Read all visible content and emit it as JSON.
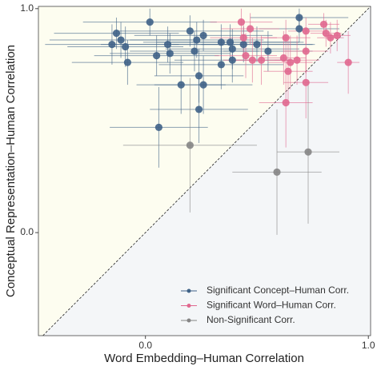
{
  "chart_data": {
    "type": "scatter",
    "xlabel": "Word Embedding–Human Correlation",
    "ylabel": "Conceptual Representation–Human Correlation",
    "xlim": [
      -0.48,
      1.01
    ],
    "ylim": [
      -0.46,
      1.01
    ],
    "xticks": [
      {
        "value": 0,
        "label": "0.0"
      },
      {
        "value": 1,
        "label": "1.0"
      }
    ],
    "yticks": [
      {
        "value": 0,
        "label": "0.0"
      },
      {
        "value": 1,
        "label": "1.0"
      }
    ],
    "legend": "bottom-right",
    "series": [
      {
        "name": "Significant Concept–Human Corr.",
        "color": "#3f6287",
        "x": [
          0.02,
          -0.13,
          -0.15,
          -0.11,
          -0.09,
          -0.08,
          0.05,
          0.1,
          0.11,
          0.2,
          0.23,
          0.26,
          0.22,
          0.24,
          0.26,
          0.16,
          0.24,
          0.06,
          0.34,
          0.38,
          0.39,
          0.34,
          0.39,
          0.44,
          0.5,
          0.55,
          0.69,
          0.69
        ],
        "values": [
          0.94,
          0.89,
          0.84,
          0.86,
          0.83,
          0.76,
          0.79,
          0.84,
          0.8,
          0.9,
          0.86,
          0.88,
          0.81,
          0.7,
          0.66,
          0.66,
          0.55,
          0.47,
          0.85,
          0.85,
          0.82,
          0.75,
          0.77,
          0.84,
          0.84,
          0.81,
          0.96,
          0.91
        ],
        "xerr": [
          0.3,
          0.28,
          0.3,
          0.32,
          0.26,
          0.25,
          0.28,
          0.3,
          0.27,
          0.33,
          0.3,
          0.31,
          0.29,
          0.2,
          0.22,
          0.2,
          0.22,
          0.22,
          0.35,
          0.33,
          0.3,
          0.28,
          0.26,
          0.32,
          0.25,
          0.2,
          0.22,
          0.18
        ],
        "yerr": [
          0.06,
          0.07,
          0.09,
          0.08,
          0.09,
          0.1,
          0.09,
          0.08,
          0.09,
          0.07,
          0.08,
          0.07,
          0.09,
          0.12,
          0.13,
          0.13,
          0.15,
          0.18,
          0.08,
          0.08,
          0.09,
          0.11,
          0.1,
          0.08,
          0.08,
          0.09,
          0.04,
          0.06
        ]
      },
      {
        "name": "Significant Word–Human Corr.",
        "color": "#e0688f",
        "x": [
          0.43,
          0.47,
          0.44,
          0.45,
          0.48,
          0.52,
          0.62,
          0.63,
          0.65,
          0.68,
          0.72,
          0.72,
          0.8,
          0.81,
          0.83,
          0.86,
          0.91,
          0.72,
          0.63,
          0.64
        ],
        "values": [
          0.94,
          0.91,
          0.87,
          0.79,
          0.77,
          0.77,
          0.78,
          0.87,
          0.76,
          0.77,
          0.9,
          0.81,
          0.93,
          0.89,
          0.87,
          0.88,
          0.76,
          0.67,
          0.58,
          0.72
        ],
        "xerr": [
          0.14,
          0.13,
          0.15,
          0.14,
          0.13,
          0.12,
          0.1,
          0.11,
          0.1,
          0.1,
          0.08,
          0.1,
          0.07,
          0.07,
          0.06,
          0.06,
          0.05,
          0.1,
          0.12,
          0.11
        ],
        "yerr": [
          0.06,
          0.07,
          0.08,
          0.1,
          0.1,
          0.11,
          0.12,
          0.08,
          0.12,
          0.11,
          0.06,
          0.1,
          0.05,
          0.06,
          0.07,
          0.07,
          0.14,
          0.16,
          0.2,
          0.14
        ]
      },
      {
        "name": "Non-Significant Corr.",
        "color": "#858585",
        "x": [
          0.2,
          0.59,
          0.73
        ],
        "values": [
          0.39,
          0.27,
          0.36
        ],
        "xerr": [
          0.3,
          0.2,
          0.14
        ],
        "yerr": [
          0.3,
          0.28,
          0.32
        ]
      }
    ]
  }
}
